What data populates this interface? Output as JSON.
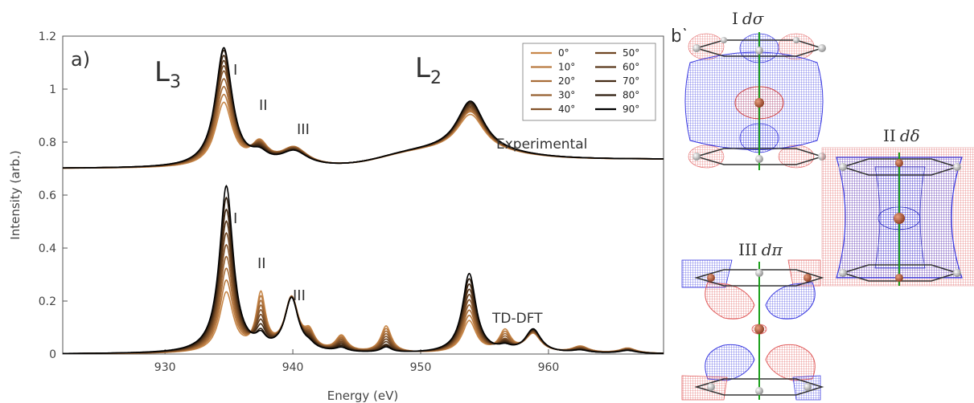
{
  "panel_a": {
    "tag": "a)",
    "edge_l3": "L",
    "edge_l3_sub": "3",
    "edge_l2": "L",
    "edge_l2_sub": "2",
    "exp_label": "Experimental",
    "dft_label": "TD-DFT",
    "peak_labels": [
      "I",
      "II",
      "III"
    ]
  },
  "panel_b": {
    "tag": "b)",
    "orbitals": [
      {
        "roman": "I",
        "symbol": "dσ"
      },
      {
        "roman": "II",
        "symbol": "dδ"
      },
      {
        "roman": "III",
        "symbol": "dπ"
      }
    ],
    "colors": {
      "positive_lobe": "#2b2bd6",
      "negative_lobe": "#e04848",
      "axis": "#1aa01a",
      "ring": "#333333",
      "metal": "#b05a40"
    }
  },
  "chart_data": {
    "type": "line",
    "xlabel": "Energy (eV)",
    "ylabel": "Intensity (arb.)",
    "xlim": [
      922,
      969
    ],
    "ylim": [
      0,
      1.2
    ],
    "xticks": [
      930,
      940,
      950,
      960
    ],
    "yticks": [
      0,
      0.2,
      0.4,
      0.6,
      0.8,
      1,
      1.2
    ],
    "grid": false,
    "legend_position": "top-right",
    "legend": [
      "0°",
      "10°",
      "20°",
      "30°",
      "40°",
      "50°",
      "60°",
      "70°",
      "80°",
      "90°"
    ],
    "series_colors": [
      "#c8884a",
      "#b97a40",
      "#a86d38",
      "#966030",
      "#83532a",
      "#6f4623",
      "#5a391c",
      "#452b15",
      "#2e1d0e",
      "#000000"
    ],
    "groups": [
      {
        "label": "Experimental",
        "baseline": 0.7,
        "peaks": [
          {
            "center": 934.6,
            "width": 0.8,
            "heights": [
              0.24,
              0.27,
              0.3,
              0.33,
              0.36,
              0.38,
              0.4,
              0.42,
              0.44,
              0.45
            ]
          },
          {
            "center": 937.4,
            "width": 0.8,
            "heights": [
              0.08,
              0.075,
              0.07,
              0.065,
              0.06,
              0.055,
              0.05,
              0.045,
              0.04,
              0.035
            ]
          },
          {
            "center": 940.1,
            "width": 1.3,
            "heights": [
              0.07,
              0.07,
              0.068,
              0.066,
              0.064,
              0.062,
              0.06,
              0.058,
              0.056,
              0.055
            ]
          },
          {
            "center": 953.9,
            "width": 1.3,
            "heights": [
              0.14,
              0.15,
              0.155,
              0.16,
              0.165,
              0.17,
              0.175,
              0.18,
              0.185,
              0.19
            ]
          }
        ]
      },
      {
        "label": "TD-DFT",
        "baseline": 0,
        "peaks": [
          {
            "center": 934.8,
            "width": 0.65,
            "heights": [
              0.225,
              0.27,
              0.315,
              0.36,
              0.405,
              0.45,
              0.495,
              0.54,
              0.585,
              0.63
            ]
          },
          {
            "center": 937.5,
            "width": 0.45,
            "heights": [
              0.21,
              0.19,
              0.17,
              0.15,
              0.13,
              0.11,
              0.09,
              0.07,
              0.05,
              0.04
            ]
          },
          {
            "center": 939.9,
            "width": 0.65,
            "heights": [
              0.2,
              0.2,
              0.2,
              0.2,
              0.2,
              0.2,
              0.2,
              0.2,
              0.2,
              0.2
            ]
          },
          {
            "center": 941.3,
            "width": 0.5,
            "heights": [
              0.06,
              0.055,
              0.05,
              0.045,
              0.04,
              0.035,
              0.03,
              0.025,
              0.02,
              0.015
            ]
          },
          {
            "center": 943.8,
            "width": 0.55,
            "heights": [
              0.06,
              0.055,
              0.05,
              0.045,
              0.04,
              0.035,
              0.03,
              0.025,
              0.02,
              0.015
            ]
          },
          {
            "center": 947.3,
            "width": 0.5,
            "heights": [
              0.1,
              0.09,
              0.08,
              0.07,
              0.06,
              0.05,
              0.04,
              0.03,
              0.025,
              0.02
            ]
          },
          {
            "center": 953.8,
            "width": 0.65,
            "heights": [
              0.12,
              0.14,
              0.16,
              0.18,
              0.2,
              0.22,
              0.24,
              0.26,
              0.28,
              0.3
            ]
          },
          {
            "center": 956.6,
            "width": 0.55,
            "heights": [
              0.08,
              0.07,
              0.06,
              0.05,
              0.04,
              0.035,
              0.03,
              0.025,
              0.02,
              0.015
            ]
          },
          {
            "center": 958.8,
            "width": 0.75,
            "heights": [
              0.07,
              0.072,
              0.074,
              0.076,
              0.078,
              0.08,
              0.082,
              0.084,
              0.086,
              0.088
            ]
          },
          {
            "center": 962.5,
            "width": 0.8,
            "heights": [
              0.025,
              0.024,
              0.022,
              0.02,
              0.018,
              0.016,
              0.014,
              0.012,
              0.01,
              0.01
            ]
          },
          {
            "center": 966.2,
            "width": 0.8,
            "heights": [
              0.02,
              0.019,
              0.018,
              0.017,
              0.016,
              0.015,
              0.014,
              0.013,
              0.012,
              0.011
            ]
          }
        ]
      }
    ]
  }
}
